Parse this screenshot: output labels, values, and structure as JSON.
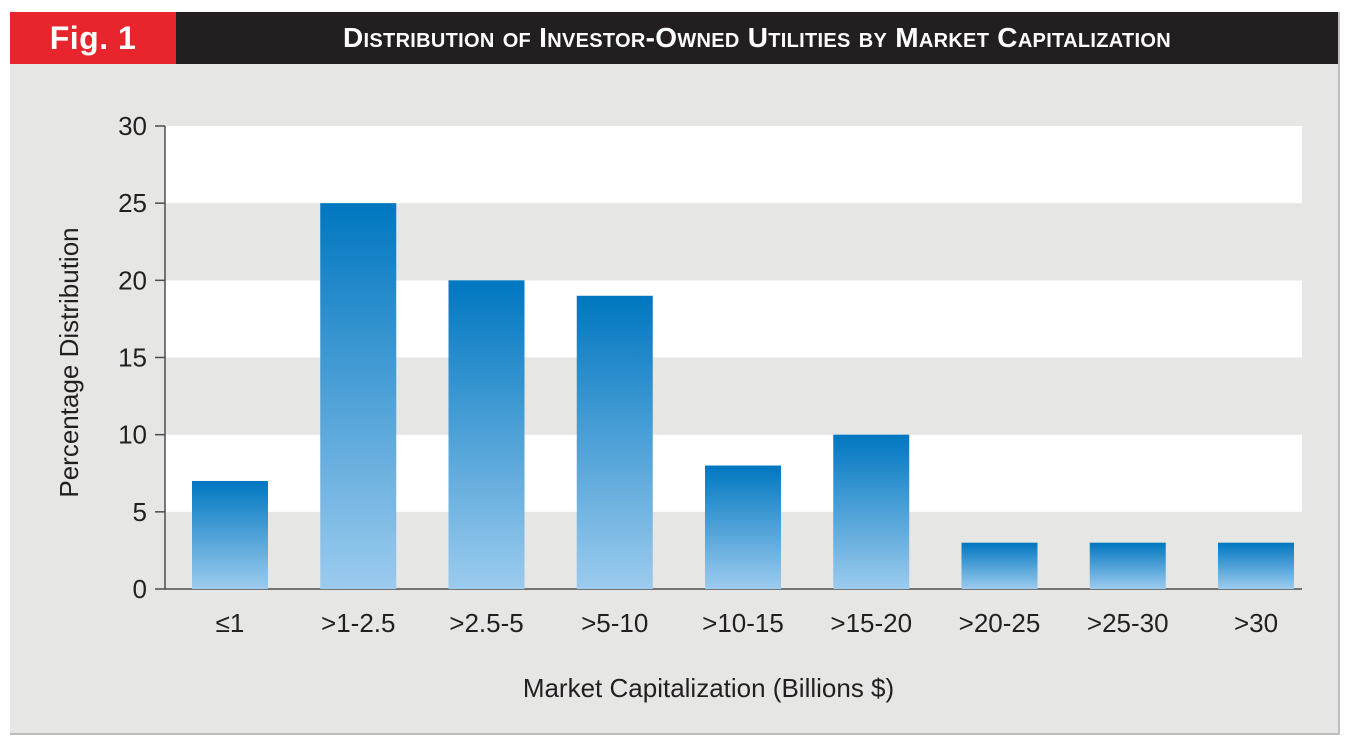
{
  "figure": {
    "label": "Fig. 1",
    "title": "Distribution of Investor-Owned Utilities by Market Capitalization"
  },
  "colors": {
    "fig_label_bg": "#e8242c",
    "title_bg": "#231f20",
    "plot_band_light": "#ffffff",
    "plot_band_dark": "#e6e6e5",
    "bar_top": "#0077c0",
    "bar_bottom": "#9ccbee"
  },
  "chart_data": {
    "type": "bar",
    "title": "Distribution of Investor-Owned Utilities by Market Capitalization",
    "xlabel": "Market Capitalization (Billions $)",
    "ylabel": "Percentage Distribution",
    "categories": [
      "≤1",
      ">1-2.5",
      ">2.5-5",
      ">5-10",
      ">10-15",
      ">15-20",
      ">20-25",
      ">25-30",
      ">30"
    ],
    "values": [
      7,
      25,
      20,
      19,
      8,
      10,
      3,
      3,
      3
    ],
    "ylim": [
      0,
      30
    ],
    "yticks": [
      0,
      5,
      10,
      15,
      20,
      25,
      30
    ],
    "grid": "alternating horizontal bands",
    "legend": "none"
  }
}
